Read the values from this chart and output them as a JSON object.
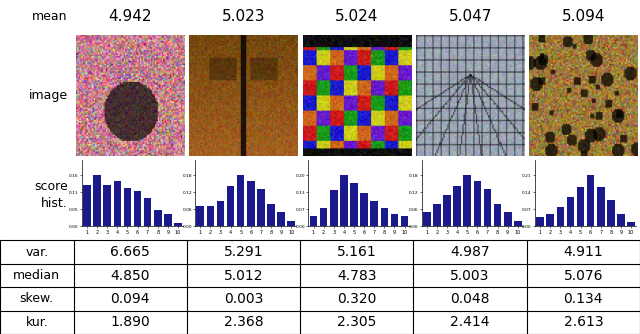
{
  "means": [
    "4.942",
    "5.023",
    "5.024",
    "5.047",
    "5.094"
  ],
  "vars": [
    "6.665",
    "5.291",
    "5.161",
    "4.987",
    "4.911"
  ],
  "medians": [
    "4.850",
    "5.012",
    "4.783",
    "5.003",
    "5.076"
  ],
  "skews": [
    "0.094",
    "0.003",
    "0.320",
    "0.048",
    "0.134"
  ],
  "kurs": [
    "1.890",
    "2.368",
    "2.305",
    "2.414",
    "2.613"
  ],
  "hist_data": [
    [
      0.13,
      0.16,
      0.13,
      0.14,
      0.12,
      0.11,
      0.09,
      0.05,
      0.04,
      0.01
    ],
    [
      0.07,
      0.07,
      0.09,
      0.14,
      0.18,
      0.16,
      0.13,
      0.08,
      0.05,
      0.02
    ],
    [
      0.04,
      0.07,
      0.14,
      0.2,
      0.17,
      0.13,
      0.1,
      0.07,
      0.05,
      0.04
    ],
    [
      0.05,
      0.08,
      0.11,
      0.14,
      0.18,
      0.16,
      0.13,
      0.08,
      0.05,
      0.02
    ],
    [
      0.04,
      0.05,
      0.08,
      0.12,
      0.16,
      0.21,
      0.16,
      0.11,
      0.05,
      0.02
    ]
  ],
  "bar_color": "#1a1a8c",
  "bg_color": "#ffffff",
  "label_fontsize": 9,
  "value_fontsize": 10,
  "mean_fontsize": 11
}
